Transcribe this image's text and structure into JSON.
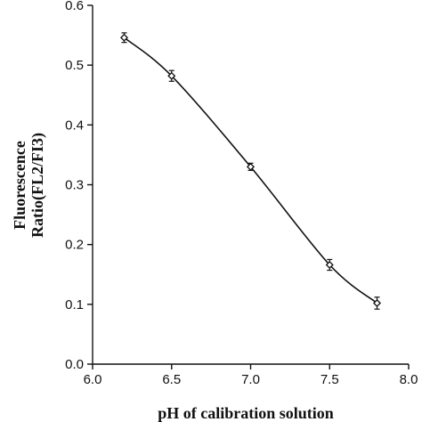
{
  "chart_data": {
    "type": "line",
    "title": "",
    "xlabel": "pH of calibration solution",
    "ylabel_lines": [
      "Fluorescence",
      "Ratio(FL2/FI3)"
    ],
    "xlim": [
      6.0,
      8.0
    ],
    "ylim": [
      0.0,
      0.6
    ],
    "x_ticks": [
      "6.0",
      "6.5",
      "7.0",
      "7.5",
      "8.0"
    ],
    "y_ticks": [
      "0.0",
      "0.1",
      "0.2",
      "0.3",
      "0.4",
      "0.5",
      "0.6"
    ],
    "grid": false,
    "series": [
      {
        "x": [
          6.2,
          6.5,
          7.0,
          7.5,
          7.8
        ],
        "y": [
          0.546,
          0.482,
          0.33,
          0.166,
          0.102
        ],
        "error": [
          0.008,
          0.009,
          0.006,
          0.009,
          0.01
        ]
      }
    ]
  }
}
